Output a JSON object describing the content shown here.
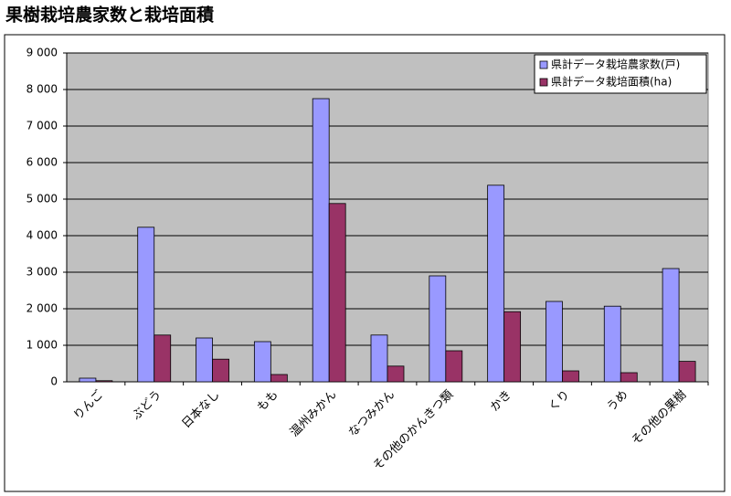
{
  "chart_data": {
    "type": "bar",
    "title": "果樹栽培農家数と栽培面積",
    "categories": [
      "りんご",
      "ぶどう",
      "日本なし",
      "もも",
      "温州みかん",
      "なつみかん",
      "その他のかんきつ類",
      "かき",
      "くり",
      "うめ",
      "その他の果樹"
    ],
    "series": [
      {
        "name": "県計データ栽培農家数(戸)",
        "color": "#9999ff",
        "values": [
          100,
          4230,
          1200,
          1100,
          7750,
          1280,
          2900,
          5380,
          2200,
          2070,
          3100
        ]
      },
      {
        "name": "県計データ栽培面積(ha)",
        "color": "#993366",
        "values": [
          30,
          1280,
          620,
          200,
          4880,
          430,
          850,
          1920,
          300,
          250,
          560
        ]
      }
    ],
    "ylim": [
      0,
      9000
    ],
    "yticks": [
      0,
      {
        "value": 1000,
        "label": "1 000"
      },
      {
        "value": 2000,
        "label": "2 000"
      },
      {
        "value": 3000,
        "label": "3 000"
      },
      {
        "value": 4000,
        "label": "4 000"
      },
      {
        "value": 5000,
        "label": "5 000"
      },
      {
        "value": 6000,
        "label": "6 000"
      },
      {
        "value": 7000,
        "label": "7 000"
      },
      {
        "value": 8000,
        "label": "8 000"
      },
      {
        "value": 9000,
        "label": "9 000"
      }
    ],
    "grid": true,
    "legend": "top-right"
  }
}
